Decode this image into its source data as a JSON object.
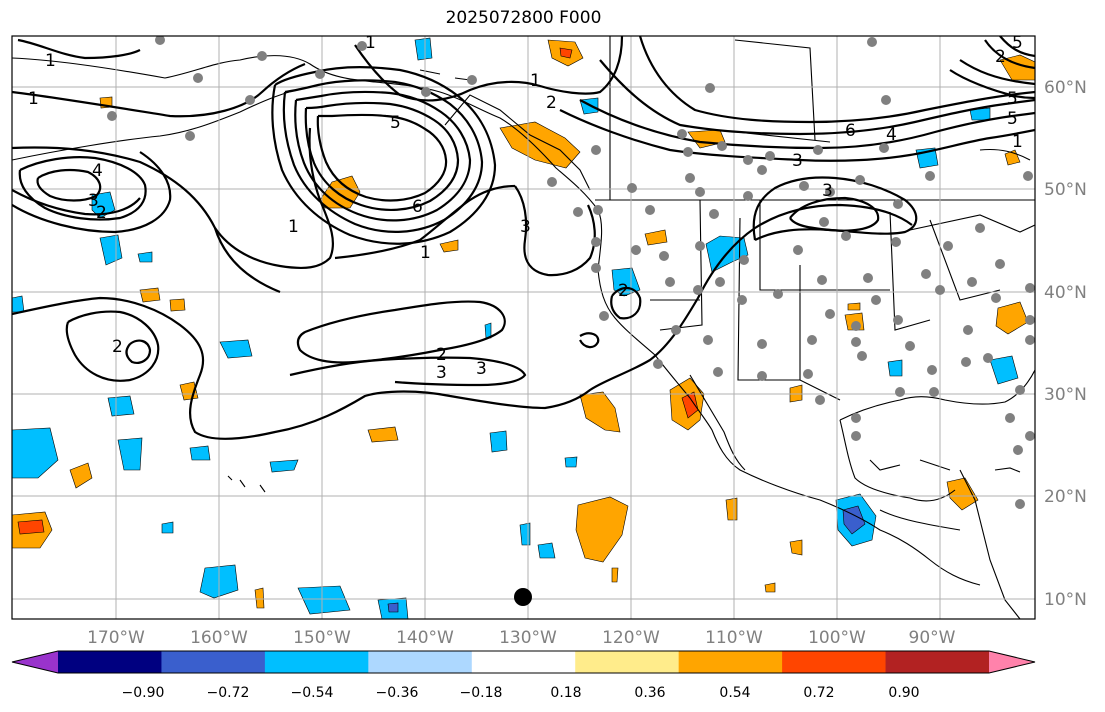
{
  "title": "2025072800 F000",
  "longitude_labels": [
    "170°W",
    "160°W",
    "150°W",
    "140°W",
    "130°W",
    "120°W",
    "110°W",
    "100°W",
    "90°W"
  ],
  "latitude_labels": [
    "60°N",
    "50°N",
    "40°N",
    "30°N",
    "20°N",
    "10°N"
  ],
  "colorbar": {
    "tick_labels": [
      "−0.90",
      "−0.72",
      "−0.54",
      "−0.36",
      "−0.18",
      "0.18",
      "0.36",
      "0.54",
      "0.72",
      "0.90"
    ],
    "colors": [
      "#9933cc",
      "#000080",
      "#3a5fcd",
      "#00bfff",
      "#add8ff",
      "#ffffff",
      "#ffec8b",
      "#ffa500",
      "#ff4500",
      "#b22222",
      "#ff82ab"
    ]
  },
  "contour_labels": [
    "1",
    "1",
    "1",
    "1",
    "1",
    "1",
    "1",
    "2",
    "2",
    "2",
    "2",
    "2",
    "2",
    "3",
    "3",
    "3",
    "3",
    "3",
    "3",
    "4",
    "4",
    "5",
    "5",
    "5",
    "5",
    "6",
    "6"
  ],
  "colors": {
    "positive": "#ffa500",
    "strong_positive": "#ff4500",
    "negative": "#00bfff",
    "strong_negative": "#3a5fcd",
    "station": "#808080"
  }
}
